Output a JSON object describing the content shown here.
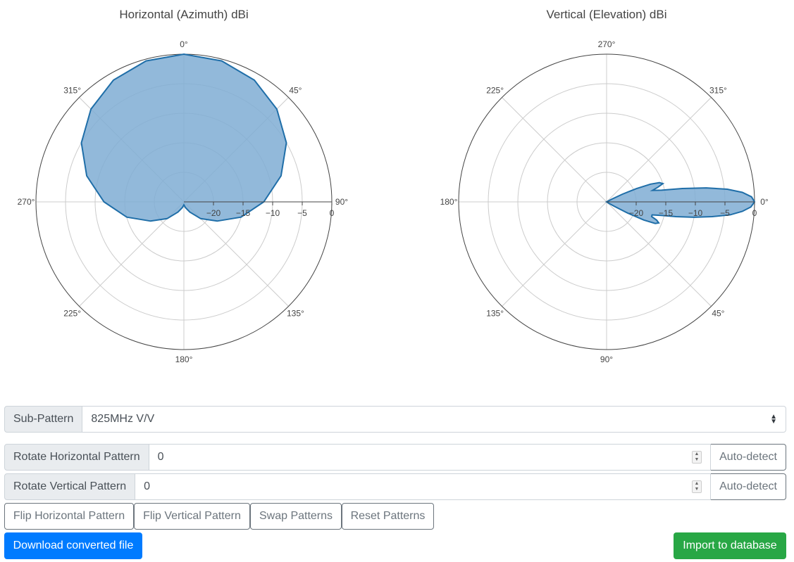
{
  "horizontal_chart": {
    "title": "Horizontal (Azimuth) dBi",
    "angle_labels": [
      "0°",
      "45°",
      "90°",
      "135°",
      "180°",
      "225°",
      "270°",
      "315°"
    ],
    "radial_ticks": [
      "−20",
      "−15",
      "−10",
      "−5",
      "0"
    ]
  },
  "vertical_chart": {
    "title": "Vertical (Elevation) dBi",
    "angle_labels": [
      "0°",
      "45°",
      "90°",
      "135°",
      "180°",
      "225°",
      "270°",
      "315°"
    ],
    "radial_ticks": [
      "−20",
      "−15",
      "−10",
      "−5",
      "0"
    ]
  },
  "chart_data": [
    {
      "type": "polar",
      "title": "Horizontal (Azimuth) dBi",
      "r_range": [
        -25,
        0
      ],
      "theta_zero": "top",
      "direction": "clockwise",
      "series": [
        {
          "theta": [
            0,
            15,
            30,
            45,
            60,
            75,
            90,
            105,
            120,
            135,
            150,
            165,
            180,
            195,
            210,
            225,
            240,
            255,
            270,
            285,
            300,
            315,
            330,
            345
          ],
          "r": [
            0,
            -0.3,
            -1.2,
            -2.8,
            -5.0,
            -8.0,
            -11.5,
            -15.0,
            -18.5,
            -21.0,
            -23.0,
            -24.0,
            -24.5,
            -24.0,
            -23.0,
            -21.0,
            -18.5,
            -15.0,
            -11.5,
            -8.0,
            -5.0,
            -2.8,
            -1.2,
            -0.3
          ]
        }
      ],
      "fill_color": "#7fadd3",
      "line_color": "#1f6ea8"
    },
    {
      "type": "polar",
      "title": "Vertical (Elevation) dBi",
      "r_range": [
        -25,
        0
      ],
      "theta_zero": "right",
      "direction": "clockwise",
      "series": [
        {
          "theta": [
            0,
            2,
            4,
            6,
            8,
            10,
            12,
            14,
            16,
            18,
            20,
            22,
            24,
            26,
            28,
            30,
            32,
            34,
            36,
            38,
            40,
            330,
            331,
            332,
            334,
            336,
            338,
            340,
            342,
            344,
            346,
            348,
            350,
            352,
            354,
            356,
            358
          ],
          "r": [
            0,
            -0.6,
            -2.0,
            -4.0,
            -7.0,
            -10.0,
            -13.0,
            -15.5,
            -17.0,
            -17.0,
            -16.0,
            -15.5,
            -16.0,
            -18.0,
            -21.0,
            -23.5,
            -24.5,
            -25,
            -25,
            -25,
            -25,
            -25,
            -25,
            -24.0,
            -22.0,
            -19.5,
            -17.0,
            -15.5,
            -15.0,
            -16.0,
            -17.0,
            -15.5,
            -12.0,
            -8.0,
            -4.5,
            -2.0,
            -0.5
          ]
        }
      ],
      "fill_color": "#7fadd3",
      "line_color": "#1f6ea8"
    }
  ],
  "sub_pattern": {
    "label": "Sub-Pattern",
    "value": "825MHz V/V"
  },
  "rotate_horizontal": {
    "label": "Rotate Horizontal Pattern",
    "value": "0",
    "button": "Auto-detect"
  },
  "rotate_vertical": {
    "label": "Rotate Vertical Pattern",
    "value": "0",
    "button": "Auto-detect"
  },
  "buttons": {
    "flip_horizontal": "Flip Horizontal Pattern",
    "flip_vertical": "Flip Vertical Pattern",
    "swap": "Swap Patterns",
    "reset": "Reset Patterns",
    "download": "Download converted file",
    "import": "Import to database"
  },
  "colors": {
    "primary": "#007bff",
    "success": "#28a745",
    "secondary": "#6c757d"
  }
}
